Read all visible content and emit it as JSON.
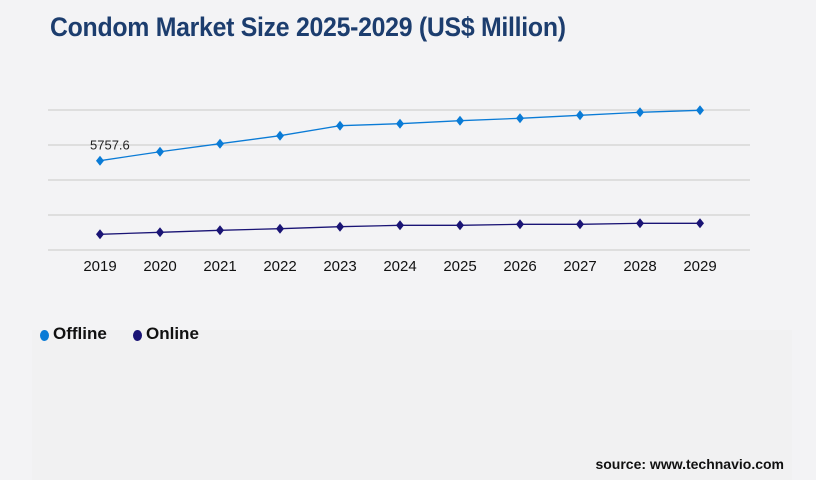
{
  "chart_data": {
    "type": "line",
    "title": "Condom Market Size 2025-2029 (US$ Million)",
    "categories": [
      "2019",
      "2020",
      "2021",
      "2022",
      "2023",
      "2024",
      "2025",
      "2026",
      "2027",
      "2028",
      "2029"
    ],
    "series": [
      {
        "name": "Offline",
        "color": "#0a7bd6",
        "values": [
          5757.6,
          6337,
          6853,
          7369,
          8014,
          8143,
          8336,
          8491,
          8684,
          8878,
          9006
        ]
      },
      {
        "name": "Online",
        "color": "#1a1475",
        "values": [
          1012,
          1141,
          1270,
          1373,
          1502,
          1592,
          1592,
          1657,
          1657,
          1721,
          1721
        ]
      }
    ],
    "data_labels": [
      {
        "series": "Offline",
        "category": "2019",
        "text": "5757.6"
      }
    ],
    "ylim": [
      0,
      9026
    ],
    "grid": true,
    "y_tick_labels_shown": false,
    "legend_position": "bottom-left",
    "xlabel": "",
    "ylabel": ""
  },
  "source": "source: www.technavio.com"
}
